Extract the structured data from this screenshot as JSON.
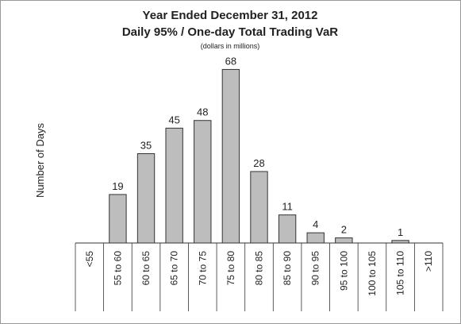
{
  "chart_data": {
    "type": "bar",
    "title": "Year Ended December 31, 2012",
    "subtitle": "Daily 95% / One-day Total Trading VaR",
    "note": "(dollars in millions)",
    "y_label": "Number of Days",
    "categories": [
      "<55",
      "55 to 60",
      "60 to 65",
      "65 to 70",
      "70 to 75",
      "75 to 80",
      "80 to 85",
      "85 to 90",
      "90 to 95",
      "95 to 100",
      "100 to 105",
      "105 to 110",
      ">110"
    ],
    "values": [
      null,
      19,
      35,
      45,
      48,
      68,
      28,
      11,
      4,
      2,
      null,
      1,
      null
    ],
    "color": "#bdbdbd",
    "ylim": [
      0,
      70
    ]
  }
}
